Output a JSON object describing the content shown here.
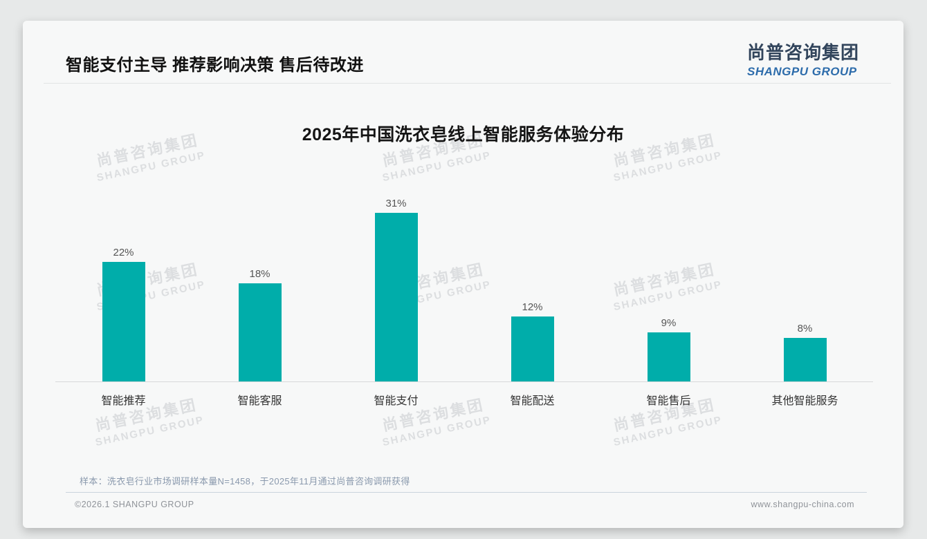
{
  "header": {
    "title": "智能支付主导 推荐影响决策 售后待改进"
  },
  "logo": {
    "chinese": "尚普咨询集团",
    "english": "SHANGPU GROUP"
  },
  "chart_data": {
    "type": "bar",
    "title": "2025年中国洗衣皂线上智能服务体验分布",
    "categories": [
      "智能推荐",
      "智能客服",
      "智能支付",
      "智能配送",
      "智能售后",
      "其他智能服务"
    ],
    "values": [
      22,
      18,
      31,
      12,
      9,
      8
    ],
    "data_labels": [
      "22%",
      "18%",
      "31%",
      "12%",
      "9%",
      "8%"
    ],
    "unit": "%",
    "xlabel": "",
    "ylabel": "",
    "ylim": [
      0,
      35
    ],
    "grid": false,
    "legend": "none",
    "bar_color": "#00adaa"
  },
  "watermark": {
    "line1": "尚普咨询集团",
    "line2": "SHANGPU GROUP"
  },
  "note": {
    "text": "样本：洗衣皂行业市场调研样本量N=1458，于2025年11月通过尚普咨询调研获得"
  },
  "footer": {
    "left": "©2026.1 SHANGPU GROUP",
    "right": "www.shangpu-china.com"
  }
}
